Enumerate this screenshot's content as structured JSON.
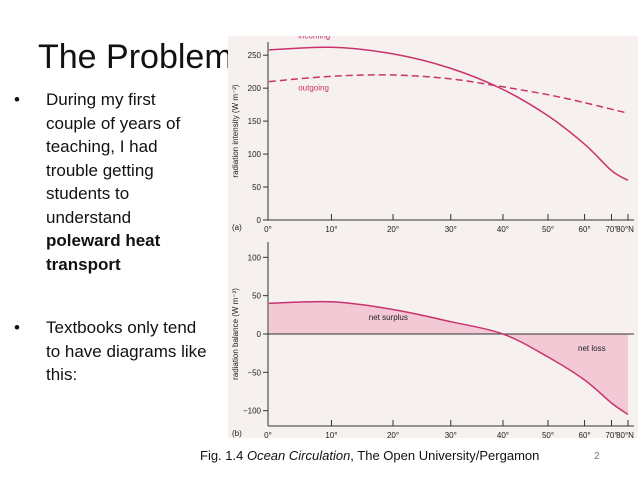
{
  "slide": {
    "title": "The Problem:",
    "bullets": [
      {
        "text_before": "During my first couple of years of teaching, I had trouble getting students to understand ",
        "bold": "poleward heat transport"
      },
      {
        "text_before": "Textbooks only tend to have diagrams like this:",
        "bold": ""
      }
    ],
    "caption": {
      "prefix": "Fig. 1.4 ",
      "italic": "Ocean Circulation",
      "suffix": ", The Open University/Pergamon"
    },
    "slide_number": "2"
  },
  "chart_data": [
    {
      "type": "line",
      "panel_label": "(a)",
      "ylabel": "radiation intensity (W m⁻²)",
      "ylim": [
        0,
        270
      ],
      "yticks": [
        "0",
        "50",
        "100",
        "150",
        "200",
        "250"
      ],
      "xticks": [
        "0°",
        "10°",
        "20°",
        "30°",
        "40°",
        "50°",
        "60°",
        "70°",
        "80°N"
      ],
      "series": [
        {
          "name": "incoming",
          "style": "solid",
          "color": "#c8336e",
          "x": [
            0,
            10,
            20,
            30,
            40,
            50,
            60,
            70,
            80
          ],
          "y": [
            258,
            262,
            252,
            230,
            198,
            158,
            115,
            75,
            60
          ]
        },
        {
          "name": "outgoing",
          "style": "dashed",
          "color": "#c8336e",
          "x": [
            0,
            10,
            20,
            30,
            40,
            50,
            60,
            70,
            80
          ],
          "y": [
            210,
            218,
            220,
            214,
            202,
            190,
            178,
            168,
            162
          ]
        }
      ]
    },
    {
      "type": "area",
      "panel_label": "(b)",
      "ylabel": "radiation balance (W m⁻²)",
      "ylim": [
        -120,
        120
      ],
      "yticks": [
        "−100",
        "−50",
        "0",
        "50",
        "100"
      ],
      "xticks": [
        "0°",
        "10°",
        "20°",
        "30°",
        "40°",
        "50°",
        "60°",
        "70°",
        "80°N"
      ],
      "series": [
        {
          "name": "radiation balance",
          "color": "#c8336e",
          "x": [
            0,
            10,
            20,
            30,
            40,
            50,
            60,
            70,
            80
          ],
          "y": [
            40,
            42,
            32,
            16,
            0,
            -30,
            -60,
            -90,
            -105
          ]
        }
      ],
      "annotations": [
        "net surplus",
        "net loss"
      ]
    }
  ],
  "colors": {
    "curve": "#c8336e",
    "fill": "#f2c9d4",
    "axis": "#333333",
    "figure_bg": "#f6f1ee"
  }
}
